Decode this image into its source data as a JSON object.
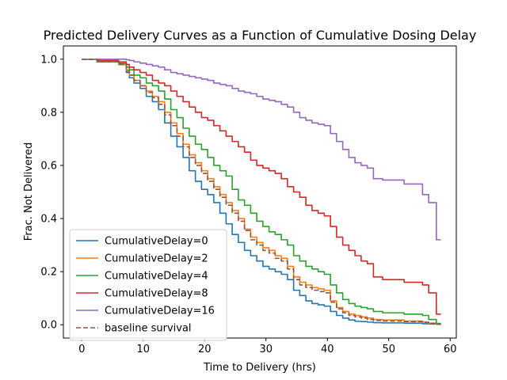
{
  "chart_data": {
    "type": "line",
    "title": "Predicted Delivery Curves as a Function of Cumulative Dosing Delay",
    "xlabel": "Time to Delivery (hrs)",
    "ylabel": "Frac. Not Delivered",
    "xlim": [
      -3,
      61
    ],
    "ylim": [
      -0.05,
      1.05
    ],
    "xticks": [
      0,
      10,
      20,
      30,
      40,
      50,
      60
    ],
    "yticks": [
      0.0,
      0.2,
      0.4,
      0.6,
      0.8,
      1.0
    ],
    "xtick_labels": [
      "0",
      "10",
      "20",
      "30",
      "40",
      "50",
      "60"
    ],
    "ytick_labels": [
      "0.0",
      "0.2",
      "0.4",
      "0.6",
      "0.8",
      "1.0"
    ],
    "legend_position": "lower-left",
    "grid": false,
    "series": [
      {
        "name": "CumulativeDelay=0",
        "color": "#1f77b4",
        "dash": "solid",
        "x": [
          0,
          5,
          7,
          7.5,
          8,
          9,
          10,
          11,
          12,
          13,
          14,
          15,
          16,
          17,
          18,
          19,
          20,
          21,
          22,
          23,
          24,
          25,
          26,
          27,
          28,
          29,
          30,
          31,
          32,
          33,
          34,
          35,
          36,
          37,
          38,
          39,
          40,
          41,
          42,
          43,
          44,
          45,
          46,
          47,
          48,
          50,
          55,
          56,
          57,
          58.5
        ],
        "y": [
          1.0,
          0.99,
          0.98,
          0.95,
          0.93,
          0.91,
          0.89,
          0.86,
          0.84,
          0.81,
          0.76,
          0.71,
          0.67,
          0.63,
          0.58,
          0.54,
          0.51,
          0.49,
          0.46,
          0.42,
          0.38,
          0.34,
          0.31,
          0.28,
          0.26,
          0.24,
          0.22,
          0.21,
          0.2,
          0.19,
          0.17,
          0.13,
          0.11,
          0.09,
          0.08,
          0.075,
          0.07,
          0.05,
          0.035,
          0.025,
          0.018,
          0.013,
          0.012,
          0.01,
          0.008,
          0.007,
          0.006,
          0.004,
          0.003,
          0.002
        ]
      },
      {
        "name": "CumulativeDelay=2",
        "color": "#ff7f0e",
        "dash": "solid",
        "x": [
          0,
          5,
          7,
          7.5,
          8,
          9,
          10,
          11,
          12,
          13,
          14,
          15,
          16,
          17,
          18,
          19,
          20,
          21,
          22,
          23,
          24,
          25,
          26,
          27,
          28,
          29,
          30,
          31,
          32,
          33,
          34,
          35,
          36,
          37,
          38,
          39,
          40,
          41,
          42,
          43,
          44,
          45,
          46,
          47,
          48,
          50,
          55,
          56,
          57,
          58.5
        ],
        "y": [
          1.0,
          0.99,
          0.98,
          0.96,
          0.94,
          0.92,
          0.9,
          0.88,
          0.86,
          0.84,
          0.8,
          0.76,
          0.72,
          0.68,
          0.64,
          0.61,
          0.58,
          0.55,
          0.52,
          0.49,
          0.46,
          0.43,
          0.4,
          0.36,
          0.33,
          0.31,
          0.29,
          0.28,
          0.26,
          0.25,
          0.22,
          0.18,
          0.16,
          0.15,
          0.14,
          0.135,
          0.13,
          0.09,
          0.065,
          0.05,
          0.04,
          0.035,
          0.03,
          0.025,
          0.02,
          0.018,
          0.014,
          0.01,
          0.006,
          0.002
        ]
      },
      {
        "name": "CumulativeDelay=4",
        "color": "#2ca02c",
        "dash": "solid",
        "x": [
          0,
          5,
          7,
          7.5,
          8,
          9,
          10,
          11,
          12,
          13,
          14,
          15,
          16,
          17,
          18,
          19,
          20,
          21,
          22,
          23,
          24,
          25,
          26,
          27,
          28,
          29,
          30,
          31,
          32,
          33,
          34,
          35,
          36,
          37,
          38,
          39,
          40,
          41,
          42,
          43,
          44,
          45,
          46,
          47,
          48,
          50,
          55,
          56,
          57,
          58.5
        ],
        "y": [
          1.0,
          0.99,
          0.985,
          0.97,
          0.96,
          0.94,
          0.93,
          0.91,
          0.9,
          0.88,
          0.85,
          0.81,
          0.78,
          0.74,
          0.71,
          0.68,
          0.66,
          0.63,
          0.6,
          0.58,
          0.56,
          0.51,
          0.47,
          0.45,
          0.42,
          0.39,
          0.37,
          0.35,
          0.34,
          0.32,
          0.3,
          0.26,
          0.24,
          0.22,
          0.21,
          0.2,
          0.19,
          0.15,
          0.12,
          0.095,
          0.08,
          0.07,
          0.065,
          0.06,
          0.05,
          0.045,
          0.04,
          0.035,
          0.02,
          0.005
        ]
      },
      {
        "name": "CumulativeDelay=8",
        "color": "#d62728",
        "dash": "solid",
        "x": [
          0,
          5,
          7,
          7.5,
          8,
          9,
          10,
          11,
          12,
          13,
          14,
          15,
          16,
          17,
          18,
          19,
          20,
          21,
          22,
          23,
          24,
          25,
          26,
          27,
          28,
          29,
          30,
          31,
          32,
          33,
          34,
          35,
          36,
          37,
          38,
          39,
          40,
          41,
          42,
          43,
          44,
          45,
          46,
          47,
          48,
          50,
          55,
          56,
          57,
          58.5
        ],
        "y": [
          1.0,
          0.995,
          0.99,
          0.98,
          0.97,
          0.96,
          0.95,
          0.94,
          0.92,
          0.91,
          0.9,
          0.88,
          0.86,
          0.84,
          0.82,
          0.8,
          0.78,
          0.77,
          0.75,
          0.73,
          0.71,
          0.69,
          0.67,
          0.65,
          0.62,
          0.6,
          0.59,
          0.58,
          0.57,
          0.55,
          0.52,
          0.5,
          0.48,
          0.45,
          0.43,
          0.42,
          0.41,
          0.37,
          0.33,
          0.3,
          0.28,
          0.26,
          0.24,
          0.23,
          0.18,
          0.17,
          0.16,
          0.15,
          0.12,
          0.04
        ]
      },
      {
        "name": "CumulativeDelay=16",
        "color": "#9467bd",
        "dash": "solid",
        "x": [
          0,
          5,
          7,
          7.5,
          8,
          9,
          10,
          11,
          12,
          13,
          14,
          15,
          16,
          17,
          18,
          19,
          20,
          21,
          22,
          23,
          24,
          25,
          26,
          27,
          28,
          29,
          30,
          31,
          32,
          33,
          34,
          35,
          36,
          37,
          38,
          39,
          40,
          41,
          42,
          43,
          44,
          45,
          46,
          47,
          48,
          50,
          55,
          56,
          57,
          58.5
        ],
        "y": [
          1.0,
          1.0,
          1.0,
          0.998,
          0.995,
          0.99,
          0.985,
          0.98,
          0.975,
          0.97,
          0.96,
          0.95,
          0.945,
          0.94,
          0.935,
          0.93,
          0.925,
          0.92,
          0.91,
          0.905,
          0.9,
          0.89,
          0.88,
          0.875,
          0.87,
          0.86,
          0.85,
          0.845,
          0.84,
          0.83,
          0.82,
          0.8,
          0.78,
          0.77,
          0.76,
          0.755,
          0.75,
          0.72,
          0.69,
          0.66,
          0.63,
          0.61,
          0.6,
          0.59,
          0.55,
          0.545,
          0.53,
          0.49,
          0.46,
          0.32
        ]
      },
      {
        "name": "baseline survival",
        "color": "#8c564b",
        "dash": "dashed",
        "x": [
          0,
          5,
          7,
          7.5,
          8,
          9,
          10,
          11,
          12,
          13,
          14,
          15,
          16,
          17,
          18,
          19,
          20,
          21,
          22,
          23,
          24,
          25,
          26,
          27,
          28,
          29,
          30,
          31,
          32,
          33,
          34,
          35,
          36,
          37,
          38,
          39,
          40,
          41,
          42,
          43,
          44,
          45,
          46,
          47,
          48,
          50,
          55,
          56,
          57,
          58.5
        ],
        "y": [
          1.0,
          0.99,
          0.98,
          0.955,
          0.94,
          0.92,
          0.9,
          0.875,
          0.855,
          0.83,
          0.79,
          0.75,
          0.71,
          0.67,
          0.63,
          0.6,
          0.57,
          0.54,
          0.51,
          0.48,
          0.45,
          0.42,
          0.39,
          0.355,
          0.32,
          0.3,
          0.28,
          0.27,
          0.25,
          0.24,
          0.21,
          0.17,
          0.15,
          0.14,
          0.13,
          0.125,
          0.12,
          0.085,
          0.06,
          0.045,
          0.035,
          0.03,
          0.025,
          0.02,
          0.016,
          0.014,
          0.012,
          0.009,
          0.005,
          0.002
        ]
      }
    ]
  }
}
